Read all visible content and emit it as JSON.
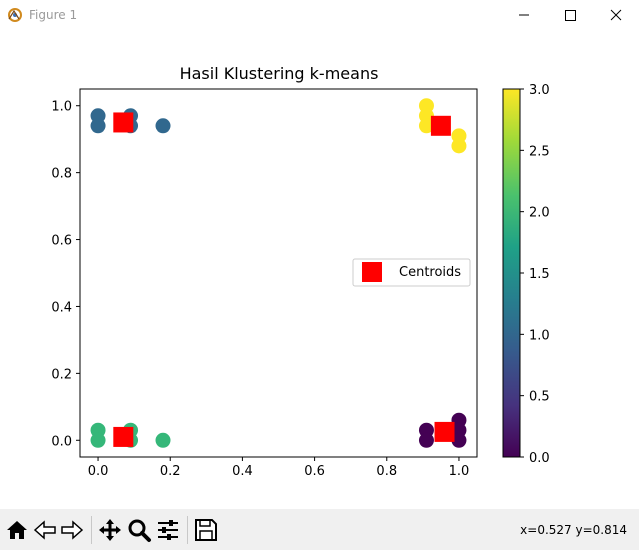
{
  "window": {
    "title": "Figure 1",
    "icons": [
      "app-icon",
      "minimize-icon",
      "maximize-icon",
      "close-icon"
    ]
  },
  "chart_data": {
    "type": "scatter",
    "title": "Hasil Klustering k-means",
    "xlabel": "",
    "ylabel": "",
    "xlim": [
      -0.05,
      1.05
    ],
    "ylim": [
      -0.05,
      1.05
    ],
    "xticks": [
      0.0,
      0.2,
      0.4,
      0.6,
      0.8,
      1.0
    ],
    "yticks": [
      0.0,
      0.2,
      0.4,
      0.6,
      0.8,
      1.0
    ],
    "xtick_labels": [
      "0.0",
      "0.2",
      "0.4",
      "0.6",
      "0.8",
      "1.0"
    ],
    "ytick_labels": [
      "0.0",
      "0.2",
      "0.4",
      "0.6",
      "0.8",
      "1.0"
    ],
    "grid": false,
    "colormap": "viridis",
    "points": [
      {
        "x": 0.0,
        "y": 0.97,
        "cluster": 1
      },
      {
        "x": 0.0,
        "y": 0.94,
        "cluster": 1
      },
      {
        "x": 0.09,
        "y": 0.97,
        "cluster": 1
      },
      {
        "x": 0.09,
        "y": 0.94,
        "cluster": 1
      },
      {
        "x": 0.18,
        "y": 0.94,
        "cluster": 1
      },
      {
        "x": 0.91,
        "y": 1.0,
        "cluster": 3
      },
      {
        "x": 0.91,
        "y": 0.97,
        "cluster": 3
      },
      {
        "x": 0.91,
        "y": 0.94,
        "cluster": 3
      },
      {
        "x": 1.0,
        "y": 0.91,
        "cluster": 3
      },
      {
        "x": 1.0,
        "y": 0.88,
        "cluster": 3
      },
      {
        "x": 0.0,
        "y": 0.03,
        "cluster": 2
      },
      {
        "x": 0.0,
        "y": 0.0,
        "cluster": 2
      },
      {
        "x": 0.09,
        "y": 0.03,
        "cluster": 2
      },
      {
        "x": 0.09,
        "y": 0.0,
        "cluster": 2
      },
      {
        "x": 0.18,
        "y": 0.0,
        "cluster": 2
      },
      {
        "x": 0.91,
        "y": 0.03,
        "cluster": 0
      },
      {
        "x": 0.91,
        "y": 0.0,
        "cluster": 0
      },
      {
        "x": 1.0,
        "y": 0.06,
        "cluster": 0
      },
      {
        "x": 1.0,
        "y": 0.03,
        "cluster": 0
      },
      {
        "x": 1.0,
        "y": 0.0,
        "cluster": 0
      }
    ],
    "centroids": [
      {
        "x": 0.07,
        "y": 0.95
      },
      {
        "x": 0.95,
        "y": 0.94
      },
      {
        "x": 0.07,
        "y": 0.01
      },
      {
        "x": 0.96,
        "y": 0.025
      }
    ],
    "centroid_color": "#ff0000",
    "legend": {
      "label": "Centroids",
      "placement": "center-right"
    },
    "colorbar": {
      "min": 0.0,
      "max": 3.0,
      "ticks": [
        0.0,
        0.5,
        1.0,
        1.5,
        2.0,
        2.5,
        3.0
      ],
      "tick_labels": [
        "0.0",
        "0.5",
        "1.0",
        "1.5",
        "2.0",
        "2.5",
        "3.0"
      ]
    },
    "cluster_colors": [
      "#440154",
      "#31688e",
      "#35b779",
      "#fde725"
    ]
  },
  "toolbar": {
    "buttons": [
      "home-icon",
      "back-icon",
      "forward-icon",
      "pan-icon",
      "zoom-icon",
      "configure-subplots-icon",
      "save-icon"
    ],
    "coords": "x=0.527  y=0.814"
  }
}
